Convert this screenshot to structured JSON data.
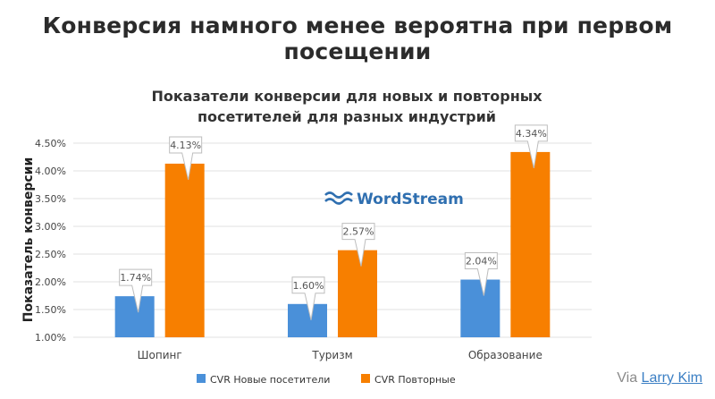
{
  "headline": "Конверсия намного менее вероятна при первом посещении",
  "watermark": {
    "text": "WordStream",
    "color": "#2f6fb0"
  },
  "credit": {
    "prefix": "Via",
    "link": "Larry Kim"
  },
  "colors": {
    "new": "#4a90d9",
    "repeat": "#f77f00",
    "grid": "#e2e2e2",
    "axis_text": "#444444"
  },
  "chart_data": {
    "type": "bar",
    "title_lines": [
      "Показатели конверсии для новых и повторных",
      "посетителей для разных индустрий"
    ],
    "ylabel": "Показатель конверсии",
    "xlabel": "",
    "categories": [
      "Шопинг",
      "Туризм",
      "Образование"
    ],
    "series": [
      {
        "name": "CVR Новые посетители",
        "values": [
          1.74,
          1.6,
          2.04
        ],
        "labels": [
          "1.74%",
          "1.60%",
          "2.04%"
        ]
      },
      {
        "name": "CVR Повторные",
        "values": [
          4.13,
          2.57,
          4.34
        ],
        "labels": [
          "4.13%",
          "2.57%",
          "4.34%"
        ]
      }
    ],
    "ylim": [
      1.0,
      4.5
    ],
    "yticks": [
      1.0,
      1.5,
      2.0,
      2.5,
      3.0,
      3.5,
      4.0,
      4.5
    ],
    "ytick_labels": [
      "1.00%",
      "1.50%",
      "2.00%",
      "2.50%",
      "3.00%",
      "3.50%",
      "4.00%",
      "4.50%"
    ],
    "grid": true,
    "legend": "bottom"
  }
}
